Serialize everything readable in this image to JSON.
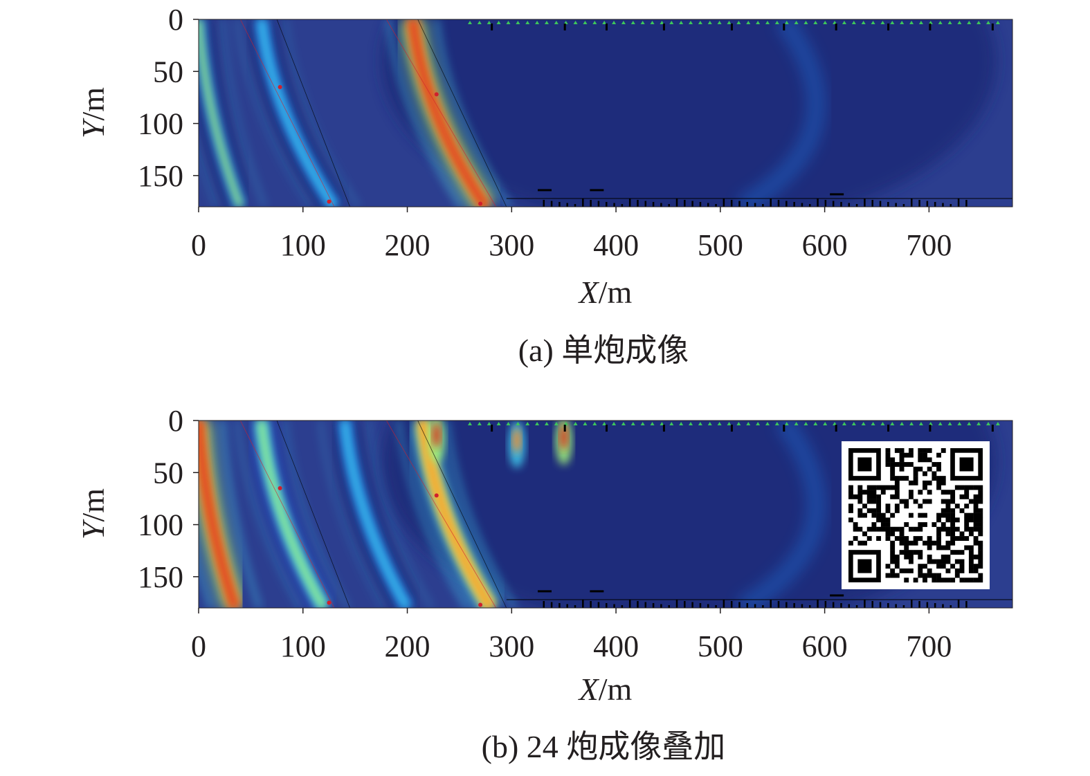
{
  "chart_data": [
    {
      "type": "heatmap",
      "caption": "(a) 单炮成像",
      "xlabel": {
        "var": "X",
        "unit": "/m"
      },
      "ylabel": {
        "var": "Y",
        "unit": "/m"
      },
      "xlim": [
        0,
        780
      ],
      "ylim": [
        180,
        0
      ],
      "xticks": [
        0,
        100,
        200,
        300,
        400,
        500,
        600,
        700
      ],
      "yticks": [
        0,
        50,
        100,
        150
      ],
      "background_color": "#2c3e8f",
      "colormap": [
        "#1e2a78",
        "#2440b8",
        "#1f78e0",
        "#3fc4e8",
        "#9ff07a",
        "#f5e84a",
        "#f28a2a",
        "#d9321e"
      ],
      "features": [
        {
          "kind": "arc",
          "name": "main reflection",
          "x_top": 205,
          "x_bottom": 275,
          "intensity": 1.0
        },
        {
          "kind": "arc",
          "name": "weak left band",
          "x_top": 60,
          "x_bottom": 130,
          "intensity": 0.45
        },
        {
          "kind": "arc",
          "name": "weak far-left band",
          "x_top": 0,
          "x_bottom": 40,
          "intensity": 0.5
        }
      ]
    },
    {
      "type": "heatmap",
      "caption": "(b) 24 炮成像叠加",
      "xlabel": {
        "var": "X",
        "unit": "/m"
      },
      "ylabel": {
        "var": "Y",
        "unit": "/m"
      },
      "xlim": [
        0,
        780
      ],
      "ylim": [
        180,
        0
      ],
      "xticks": [
        0,
        100,
        200,
        300,
        400,
        500,
        600,
        700
      ],
      "yticks": [
        0,
        50,
        100,
        150
      ],
      "background_color": "#2c3e8f",
      "colormap": [
        "#1e2a78",
        "#2440b8",
        "#1f78e0",
        "#3fc4e8",
        "#9ff07a",
        "#f5e84a",
        "#f28a2a",
        "#d9321e"
      ],
      "features": [
        {
          "kind": "arc",
          "name": "main reflection",
          "x_top": 215,
          "x_bottom": 280,
          "intensity": 0.9
        },
        {
          "kind": "arc",
          "name": "left edge band",
          "x_top": 0,
          "x_bottom": 35,
          "intensity": 1.0
        },
        {
          "kind": "arc",
          "name": "band 2",
          "x_top": 60,
          "x_bottom": 120,
          "intensity": 0.55
        },
        {
          "kind": "arc",
          "name": "band 3",
          "x_top": 140,
          "x_bottom": 200,
          "intensity": 0.45
        },
        {
          "kind": "spot",
          "name": "near-surface anomaly 1",
          "x": 228,
          "y": 10,
          "intensity": 1.0
        },
        {
          "kind": "spot",
          "name": "near-surface anomaly 2",
          "x": 305,
          "y": 15,
          "intensity": 0.8
        },
        {
          "kind": "spot",
          "name": "near-surface anomaly 3",
          "x": 350,
          "y": 12,
          "intensity": 0.95
        }
      ],
      "has_qr_code": true
    }
  ],
  "colors": {
    "axis": "#231f20",
    "receiver_marker": "#3ec75a",
    "overlay_line": "#000000",
    "overlay_red": "#d11f2c"
  }
}
